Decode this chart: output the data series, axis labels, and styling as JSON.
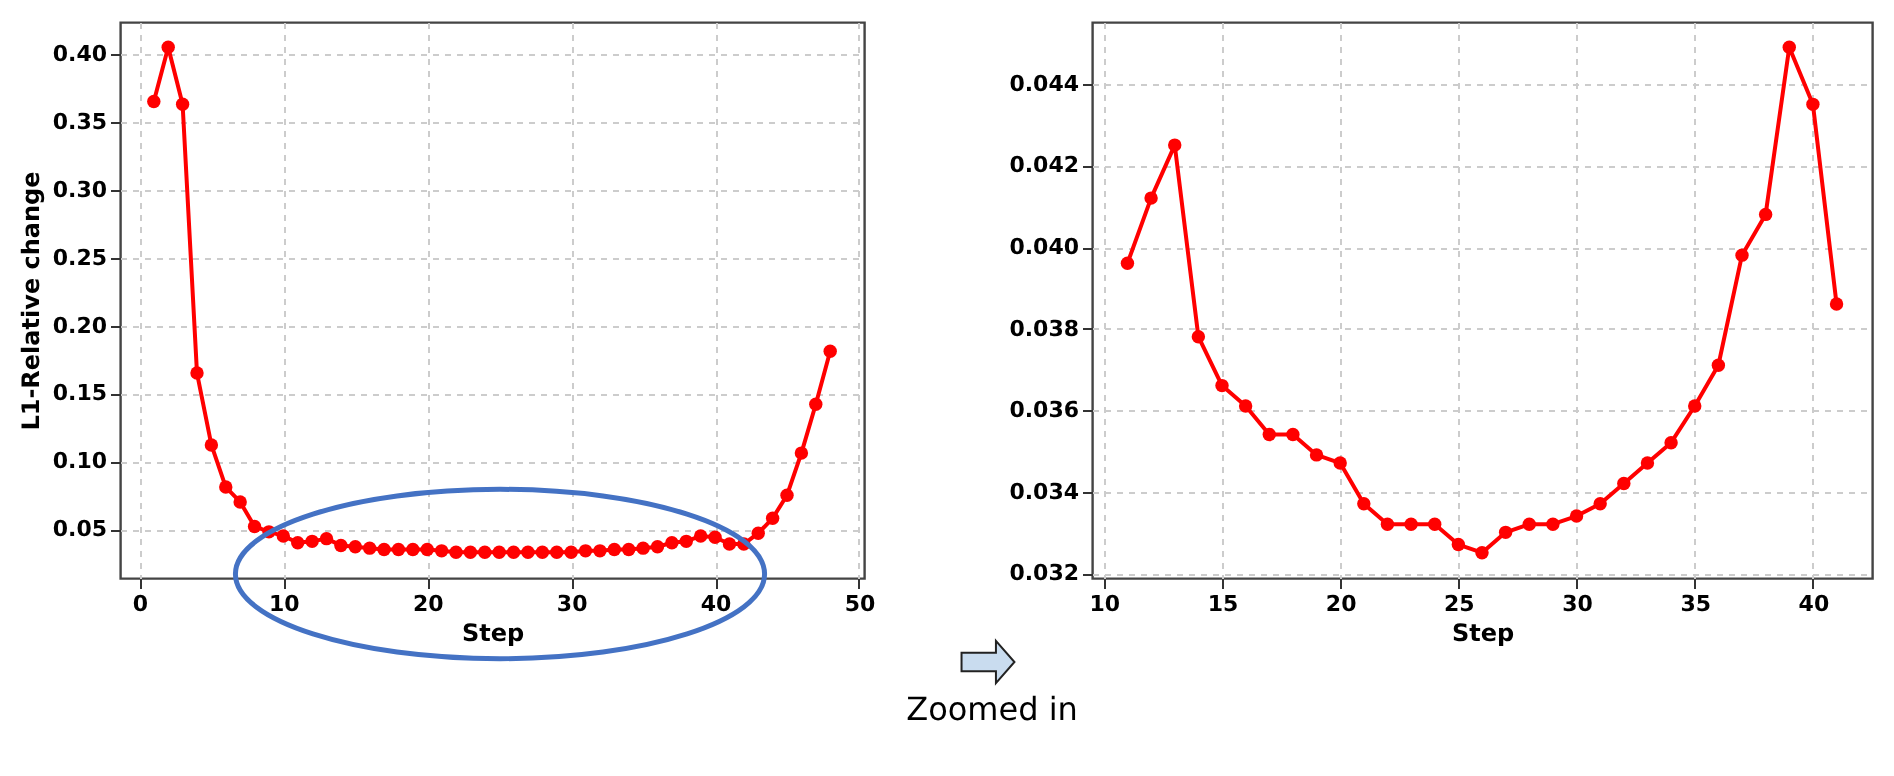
{
  "chart_data": [
    {
      "type": "line",
      "xlabel": "Step",
      "ylabel": "L1-Relative change",
      "x": [
        1,
        2,
        3,
        4,
        5,
        6,
        7,
        8,
        9,
        10,
        11,
        12,
        13,
        14,
        15,
        16,
        17,
        18,
        19,
        20,
        21,
        22,
        23,
        24,
        25,
        26,
        27,
        28,
        29,
        30,
        31,
        32,
        33,
        34,
        35,
        36,
        37,
        38,
        39,
        40,
        41,
        42,
        43,
        44,
        45,
        46,
        47,
        48
      ],
      "series": [
        {
          "color": "#ff0000",
          "values": [
            0.365,
            0.405,
            0.363,
            0.165,
            0.112,
            0.081,
            0.07,
            0.052,
            0.048,
            0.045,
            0.04,
            0.041,
            0.043,
            0.038,
            0.037,
            0.036,
            0.035,
            0.035,
            0.035,
            0.035,
            0.034,
            0.033,
            0.033,
            0.033,
            0.033,
            0.033,
            0.033,
            0.033,
            0.033,
            0.033,
            0.034,
            0.034,
            0.035,
            0.035,
            0.036,
            0.037,
            0.04,
            0.041,
            0.045,
            0.044,
            0.039,
            0.039,
            0.047,
            0.058,
            0.075,
            0.106,
            0.142,
            0.181
          ]
        }
      ],
      "xlim": [
        -1.35,
        50.35
      ],
      "ylim": [
        0.014,
        0.4236
      ],
      "xticks": [
        0,
        10,
        20,
        30,
        40,
        50
      ],
      "yticks": [
        {
          "value": 0.05,
          "label": "0.05"
        },
        {
          "value": 0.1,
          "label": "0.10"
        },
        {
          "value": 0.15,
          "label": "0.15"
        },
        {
          "value": 0.2,
          "label": "0.20"
        },
        {
          "value": 0.25,
          "label": "0.25"
        },
        {
          "value": 0.3,
          "label": "0.30"
        },
        {
          "value": 0.35,
          "label": "0.35"
        },
        {
          "value": 0.4,
          "label": "0.40"
        }
      ],
      "grid": true,
      "marker": "circle",
      "line_style": "solid"
    },
    {
      "type": "line",
      "xlabel": "Step",
      "annotations": [
        "Zoomed in"
      ],
      "x": [
        11,
        12,
        13,
        14,
        15,
        16,
        17,
        18,
        19,
        20,
        21,
        22,
        23,
        24,
        25,
        26,
        27,
        28,
        29,
        30,
        31,
        32,
        33,
        34,
        35,
        36,
        37,
        38,
        39,
        40,
        41
      ],
      "series": [
        {
          "color": "#ff0000",
          "values": [
            0.0396,
            0.0412,
            0.0425,
            0.0378,
            0.0366,
            0.0361,
            0.0354,
            0.0354,
            0.0349,
            0.0347,
            0.0337,
            0.0332,
            0.0332,
            0.0332,
            0.0327,
            0.0325,
            0.033,
            0.0332,
            0.0332,
            0.0334,
            0.0337,
            0.0342,
            0.0347,
            0.0352,
            0.0361,
            0.0371,
            0.0398,
            0.0408,
            0.0449,
            0.0435,
            0.0386
          ]
        }
      ],
      "xlim": [
        9.5,
        42.5
      ],
      "ylim": [
        0.03188,
        0.04552
      ],
      "xticks": [
        10,
        15,
        20,
        25,
        30,
        35,
        40
      ],
      "yticks": [
        {
          "value": 0.032,
          "label": "0.032"
        },
        {
          "value": 0.034,
          "label": "0.034"
        },
        {
          "value": 0.036,
          "label": "0.036"
        },
        {
          "value": 0.038,
          "label": "0.038"
        },
        {
          "value": 0.04,
          "label": "0.040"
        },
        {
          "value": 0.042,
          "label": "0.042"
        },
        {
          "value": 0.044,
          "label": "0.044"
        }
      ],
      "grid": true,
      "marker": "circle",
      "line_style": "solid"
    }
  ]
}
